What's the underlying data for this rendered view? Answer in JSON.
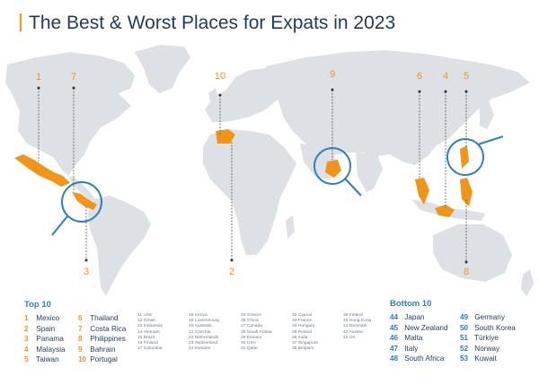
{
  "title": "The Best & Worst Places for Expats in 2023",
  "callouts": [
    {
      "label": "1"
    },
    {
      "label": "7"
    },
    {
      "label": "10"
    },
    {
      "label": "9"
    },
    {
      "label": "6"
    },
    {
      "label": "4"
    },
    {
      "label": "5"
    },
    {
      "label": "3"
    },
    {
      "label": "2"
    },
    {
      "label": "8"
    }
  ],
  "top10": {
    "heading": "Top 10",
    "col1": [
      {
        "rank": "1",
        "name": "Mexico"
      },
      {
        "rank": "2",
        "name": "Spain"
      },
      {
        "rank": "3",
        "name": "Panama"
      },
      {
        "rank": "4",
        "name": "Malaysia"
      },
      {
        "rank": "5",
        "name": "Taiwan"
      }
    ],
    "col2": [
      {
        "rank": "6",
        "name": "Thailand"
      },
      {
        "rank": "7",
        "name": "Costa Rica"
      },
      {
        "rank": "8",
        "name": "Philippines"
      },
      {
        "rank": "9",
        "name": "Bahrain"
      },
      {
        "rank": "10",
        "name": "Portugal"
      }
    ]
  },
  "middle": [
    [
      "11 UAE",
      "12 Oman",
      "13 Indonesia",
      "14 Vietnam",
      "15 Brazil",
      "16 Finland",
      "17 Colombia"
    ],
    [
      "18 Kenya",
      "19 Luxembourg",
      "20 Australia",
      "21 Czechia",
      "22 Netherlands",
      "23 Switzerland",
      "24 Sweden"
    ],
    [
      "25 Greece",
      "26 China",
      "27 Canada",
      "28 Saudi Arabia",
      "29 Estonia",
      "30 USA",
      "31 Qatar"
    ],
    [
      "32 Cyprus",
      "33 France",
      "34 Hungary",
      "35 Poland",
      "36 India",
      "37 Singapore",
      "38 Belgium"
    ],
    [
      "39 Ireland",
      "40 Hong Kong",
      "41 Denmark",
      "42 Austria",
      "43 UK"
    ]
  ],
  "bottom10": {
    "heading": "Bottom 10",
    "col1": [
      {
        "rank": "44",
        "name": "Japan"
      },
      {
        "rank": "45",
        "name": "New Zealand"
      },
      {
        "rank": "46",
        "name": "Malta"
      },
      {
        "rank": "47",
        "name": "Italy"
      },
      {
        "rank": "48",
        "name": "South Africa"
      }
    ],
    "col2": [
      {
        "rank": "49",
        "name": "Germany"
      },
      {
        "rank": "50",
        "name": "South Korea"
      },
      {
        "rank": "51",
        "name": "Türkiye"
      },
      {
        "rank": "52",
        "name": "Norway"
      },
      {
        "rank": "53",
        "name": "Kuwait"
      }
    ]
  },
  "colors": {
    "accent": "#f0941a",
    "navy": "#1f3a5f",
    "blue": "#2f7fc1",
    "land": "#dde0e4"
  }
}
